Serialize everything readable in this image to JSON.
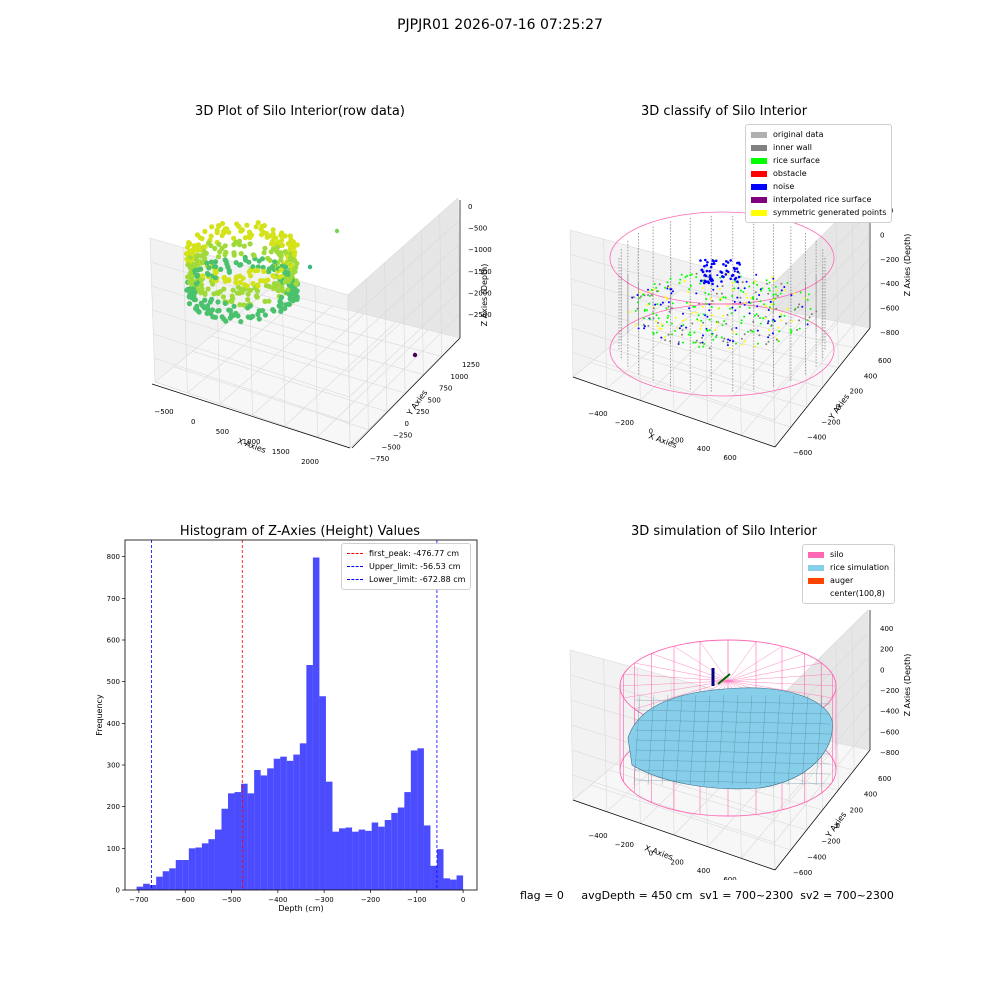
{
  "figure": {
    "suptitle": "PJPJR01 2026-07-16 07:25:27",
    "status": {
      "flag": "flag = 0",
      "avg": "avgDepth = 450 cm",
      "sv1": "sv1 = 700~2300",
      "sv2": "sv2 = 700~2300"
    }
  },
  "colors": {
    "pane": "#f2f2f2",
    "pane_side": "#e6e6e6",
    "grid": "#d9d9d9",
    "silo": "#ff69b4",
    "rice": "#87ceeb",
    "hist": "#0000ff",
    "peak": "#ff0000",
    "limit": "#0000ff"
  },
  "chart_data": [
    {
      "type": "scatter",
      "projection": "3d",
      "title": "3D Plot of Silo Interior(row data)",
      "xlabel": "X Axies",
      "ylabel": "Y Axies",
      "zlabel": "Z Axies (Depth)",
      "xticks": [
        "−500",
        "0",
        "500",
        "1000",
        "1500",
        "2000"
      ],
      "yticks": [
        "−750",
        "−500",
        "−250",
        "0",
        "250",
        "500",
        "750",
        "1000",
        "1250"
      ],
      "zticks": [
        "0",
        "−500",
        "−1000",
        "−1500",
        "−2000",
        "−2500"
      ],
      "xlim": [
        -600,
        2200
      ],
      "ylim": [
        -800,
        1400
      ],
      "zlim": [
        -2700,
        100
      ],
      "colormap": "viridis",
      "clusters": [
        {
          "x_range": [
            -550,
            350
          ],
          "y_range": [
            -500,
            650
          ],
          "z_range": [
            -1100,
            -300
          ]
        }
      ],
      "outliers": [
        {
          "x": 1200,
          "y": 200,
          "z": -400
        },
        {
          "x": 1000,
          "y": 100,
          "z": -1400
        },
        {
          "x": 2100,
          "y": 300,
          "z": -2000
        }
      ]
    },
    {
      "type": "scatter",
      "projection": "3d",
      "title": "3D classify of Silo Interior",
      "xlabel": "X Axies",
      "ylabel": "Y Axies",
      "zlabel": "Z Axies (Depth)",
      "xticks": [
        "−400",
        "−200",
        "0",
        "200",
        "400",
        "600"
      ],
      "yticks": [
        "−600",
        "−400",
        "−200",
        "0",
        "200",
        "400",
        "600"
      ],
      "zticks": [
        "200",
        "0",
        "−200",
        "−400",
        "−600",
        "−800"
      ],
      "legend": [
        {
          "label": "original data",
          "color": "#b0b0b0"
        },
        {
          "label": "inner wall",
          "color": "#808080"
        },
        {
          "label": "rice surface",
          "color": "#00ff00"
        },
        {
          "label": "obstacle",
          "color": "#ff0000"
        },
        {
          "label": "noise",
          "color": "#0000ff"
        },
        {
          "label": "interpolated rice surface",
          "color": "#800080"
        },
        {
          "label": "symmetric generated points",
          "color": "#ffff00"
        }
      ],
      "legend_loc": "upper right"
    },
    {
      "type": "bar",
      "title": "Histogram of Z-Axies (Height) Values",
      "xlabel": "Depth (cm)",
      "ylabel": "Frequency",
      "xlim": [
        -730,
        30
      ],
      "ylim": [
        0,
        840
      ],
      "xticks": [
        -700,
        -600,
        -500,
        -400,
        -300,
        -200,
        -100,
        0
      ],
      "xtick_labels": [
        "−700",
        "−600",
        "−500",
        "−400",
        "−300",
        "−200",
        "−100",
        "0"
      ],
      "yticks": [
        0,
        100,
        200,
        300,
        400,
        500,
        600,
        700,
        800
      ],
      "bin_start": -705,
      "bin_width": 14.1,
      "values": [
        8,
        15,
        12,
        32,
        45,
        52,
        72,
        72,
        100,
        102,
        112,
        122,
        145,
        195,
        232,
        235,
        255,
        232,
        288,
        275,
        292,
        315,
        320,
        310,
        325,
        352,
        540,
        798,
        465,
        260,
        140,
        148,
        150,
        140,
        145,
        142,
        162,
        152,
        168,
        185,
        198,
        235,
        335,
        340,
        155,
        58,
        98,
        28,
        25,
        35
      ],
      "lines": [
        {
          "label": "first_peak: -476.77 cm",
          "x": -476.77,
          "color": "#ff0000",
          "style": "dashed"
        },
        {
          "label": "Upper_limit: -56.53 cm",
          "x": -56.53,
          "color": "#0000ff",
          "style": "dashed"
        },
        {
          "label": "Lower_limit: -672.88 cm",
          "x": -672.88,
          "color": "#0000ff",
          "style": "dashed"
        }
      ],
      "legend_loc": "upper right"
    },
    {
      "type": "area",
      "projection": "3d",
      "title": "3D simulation of Silo Interior",
      "xlabel": "X Axies",
      "ylabel": "Y Axies",
      "zlabel": "Z Axies (Depth)",
      "xticks": [
        "−400",
        "−200",
        "0",
        "200",
        "400",
        "600"
      ],
      "yticks": [
        "−600",
        "−400",
        "−200",
        "0",
        "200",
        "400",
        "600"
      ],
      "zticks": [
        "400",
        "200",
        "0",
        "−200",
        "−400",
        "−600",
        "−800"
      ],
      "legend": [
        {
          "label": "silo",
          "color": "#ff69b4"
        },
        {
          "label": "rice simulation",
          "color": "#87ceeb"
        },
        {
          "label": "auger",
          "color": "#ff4500"
        },
        {
          "label": "center(100,8)",
          "color": ""
        }
      ],
      "legend_loc": "upper right"
    }
  ]
}
